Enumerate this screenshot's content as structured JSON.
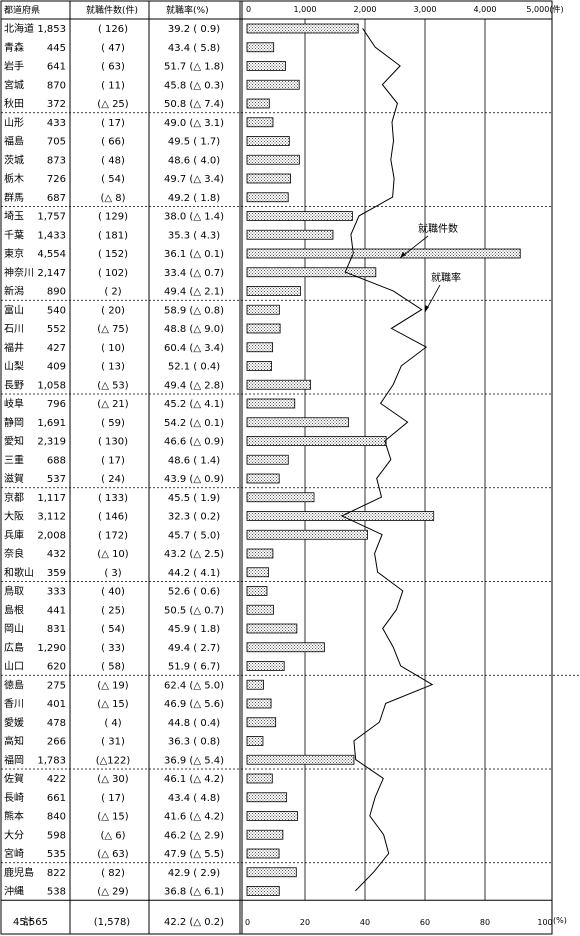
{
  "headers": {
    "prefecture": "都道府県",
    "placements": "就職件数(件)",
    "rate": "就職率(%)"
  },
  "axis": {
    "top_ticks": [
      "0",
      "1,000",
      "2,000",
      "3,000",
      "4,000",
      "5,000(件)"
    ],
    "bottom_ticks": [
      "0",
      "20",
      "40",
      "60",
      "80",
      "100"
    ],
    "bottom_unit": "(%)"
  },
  "annotations": {
    "placements_label": "就職件数",
    "rate_label": "就職率"
  },
  "totals": {
    "label": "計",
    "placements": "45,565",
    "change": "(1,578)",
    "rate": "42.2 (△ 0.2)"
  },
  "rows": [
    {
      "pref": "北海道",
      "count": "1,853",
      "change": "(  126)",
      "rate": "39.2 (   0.9)"
    },
    {
      "pref": "青森",
      "count": "445",
      "change": "(   47)",
      "rate": "43.4 (   5.8)"
    },
    {
      "pref": "岩手",
      "count": "641",
      "change": "(   63)",
      "rate": "51.7 (△ 1.8)"
    },
    {
      "pref": "宮城",
      "count": "870",
      "change": "(   11)",
      "rate": "45.8 (△ 0.3)"
    },
    {
      "pref": "秋田",
      "count": "372",
      "change": "(△ 25)",
      "rate": "50.8 (△ 7.4)"
    },
    {
      "pref": "山形",
      "count": "433",
      "change": "(   17)",
      "rate": "49.0 (△ 3.1)"
    },
    {
      "pref": "福島",
      "count": "705",
      "change": "(   66)",
      "rate": "49.5 (   1.7)"
    },
    {
      "pref": "茨城",
      "count": "873",
      "change": "(   48)",
      "rate": "48.6 (   4.0)"
    },
    {
      "pref": "栃木",
      "count": "726",
      "change": "(   54)",
      "rate": "49.7 (△ 3.4)"
    },
    {
      "pref": "群馬",
      "count": "687",
      "change": "(△  8)",
      "rate": "49.2 (   1.8)"
    },
    {
      "pref": "埼玉",
      "count": "1,757",
      "change": "(  129)",
      "rate": "38.0 (△ 1.4)"
    },
    {
      "pref": "千葉",
      "count": "1,433",
      "change": "(  181)",
      "rate": "35.3 (   4.3)"
    },
    {
      "pref": "東京",
      "count": "4,554",
      "change": "(  152)",
      "rate": "36.1 (△ 0.1)"
    },
    {
      "pref": "神奈川",
      "count": "2,147",
      "change": "(  102)",
      "rate": "33.4 (△ 0.7)"
    },
    {
      "pref": "新潟",
      "count": "890",
      "change": "(    2)",
      "rate": "49.4 (△ 2.1)"
    },
    {
      "pref": "富山",
      "count": "540",
      "change": "(   20)",
      "rate": "58.9 (△ 0.8)"
    },
    {
      "pref": "石川",
      "count": "552",
      "change": "(△ 75)",
      "rate": "48.8 (△ 9.0)"
    },
    {
      "pref": "福井",
      "count": "427",
      "change": "(   10)",
      "rate": "60.4 (△ 3.4)"
    },
    {
      "pref": "山梨",
      "count": "409",
      "change": "(   13)",
      "rate": "52.1 (   0.4)"
    },
    {
      "pref": "長野",
      "count": "1,058",
      "change": "(△ 53)",
      "rate": "49.4 (△ 2.8)"
    },
    {
      "pref": "岐阜",
      "count": "796",
      "change": "(△ 21)",
      "rate": "45.2 (△ 4.1)"
    },
    {
      "pref": "静岡",
      "count": "1,691",
      "change": "(   59)",
      "rate": "54.2 (△ 0.1)"
    },
    {
      "pref": "愛知",
      "count": "2,319",
      "change": "(  130)",
      "rate": "46.6 (△ 0.9)"
    },
    {
      "pref": "三重",
      "count": "688",
      "change": "(   17)",
      "rate": "48.6 (   1.4)"
    },
    {
      "pref": "滋賀",
      "count": "537",
      "change": "(   24)",
      "rate": "43.9 (△ 0.9)"
    },
    {
      "pref": "京都",
      "count": "1,117",
      "change": "(  133)",
      "rate": "45.5 (   1.9)"
    },
    {
      "pref": "大阪",
      "count": "3,112",
      "change": "(  146)",
      "rate": "32.3 (   0.2)"
    },
    {
      "pref": "兵庫",
      "count": "2,008",
      "change": "(  172)",
      "rate": "45.7 (   5.0)"
    },
    {
      "pref": "奈良",
      "count": "432",
      "change": "(△ 10)",
      "rate": "43.2 (△ 2.5)"
    },
    {
      "pref": "和歌山",
      "count": "359",
      "change": "(    3)",
      "rate": "44.2 (   4.1)"
    },
    {
      "pref": "鳥取",
      "count": "333",
      "change": "(   40)",
      "rate": "52.6 (   0.6)"
    },
    {
      "pref": "島根",
      "count": "441",
      "change": "(   25)",
      "rate": "50.5 (△ 0.7)"
    },
    {
      "pref": "岡山",
      "count": "831",
      "change": "(   54)",
      "rate": "45.9 (   1.8)"
    },
    {
      "pref": "広島",
      "count": "1,290",
      "change": "(   33)",
      "rate": "49.4 (   2.7)"
    },
    {
      "pref": "山口",
      "count": "620",
      "change": "(   58)",
      "rate": "51.9 (   6.7)"
    },
    {
      "pref": "徳島",
      "count": "275",
      "change": "(△ 19)",
      "rate": "62.4 (△ 5.0)"
    },
    {
      "pref": "香川",
      "count": "401",
      "change": "(△ 15)",
      "rate": "46.9 (△ 5.6)"
    },
    {
      "pref": "愛媛",
      "count": "478",
      "change": "(    4)",
      "rate": "44.8 (   0.4)"
    },
    {
      "pref": "高知",
      "count": "266",
      "change": "(   31)",
      "rate": "36.3 (   0.8)"
    },
    {
      "pref": "福岡",
      "count": "1,783",
      "change": "(△122)",
      "rate": "36.9 (△ 5.4)"
    },
    {
      "pref": "佐賀",
      "count": "422",
      "change": "(△ 30)",
      "rate": "46.1 (△ 4.2)"
    },
    {
      "pref": "長崎",
      "count": "661",
      "change": "(   17)",
      "rate": "43.4 (   4.8)"
    },
    {
      "pref": "熊本",
      "count": "840",
      "change": "(△ 15)",
      "rate": "41.6 (△ 4.2)"
    },
    {
      "pref": "大分",
      "count": "598",
      "change": "(△  6)",
      "rate": "46.2 (△ 2.9)"
    },
    {
      "pref": "宮崎",
      "count": "535",
      "change": "(△ 63)",
      "rate": "47.9 (△ 5.5)"
    },
    {
      "pref": "鹿児島",
      "count": "822",
      "change": "(   82)",
      "rate": "42.9 (   2.9)"
    },
    {
      "pref": "沖縄",
      "count": "538",
      "change": "(△ 29)",
      "rate": "36.8 (△ 6.1)"
    }
  ],
  "chart_data": {
    "type": "bar",
    "categories": [
      "北海道",
      "青森",
      "岩手",
      "宮城",
      "秋田",
      "山形",
      "福島",
      "茨城",
      "栃木",
      "群馬",
      "埼玉",
      "千葉",
      "東京",
      "神奈川",
      "新潟",
      "富山",
      "石川",
      "福井",
      "山梨",
      "長野",
      "岐阜",
      "静岡",
      "愛知",
      "三重",
      "滋賀",
      "京都",
      "大阪",
      "兵庫",
      "奈良",
      "和歌山",
      "鳥取",
      "島根",
      "岡山",
      "広島",
      "山口",
      "徳島",
      "香川",
      "愛媛",
      "高知",
      "福岡",
      "佐賀",
      "長崎",
      "熊本",
      "大分",
      "宮崎",
      "鹿児島",
      "沖縄"
    ],
    "series": [
      {
        "name": "就職件数",
        "type": "bar",
        "axis": "top",
        "unit": "件",
        "values": [
          1853,
          445,
          641,
          870,
          372,
          433,
          705,
          873,
          726,
          687,
          1757,
          1433,
          4554,
          2147,
          890,
          540,
          552,
          427,
          409,
          1058,
          796,
          1691,
          2319,
          688,
          537,
          1117,
          3112,
          2008,
          432,
          359,
          333,
          441,
          831,
          1290,
          620,
          275,
          401,
          478,
          266,
          1783,
          422,
          661,
          840,
          598,
          535,
          822,
          538
        ]
      },
      {
        "name": "就職率",
        "type": "line",
        "axis": "bottom",
        "unit": "%",
        "values": [
          39.2,
          43.4,
          51.7,
          45.8,
          50.8,
          49.0,
          49.5,
          48.6,
          49.7,
          49.2,
          38.0,
          35.3,
          36.1,
          33.4,
          49.4,
          58.9,
          48.8,
          60.4,
          52.1,
          49.4,
          45.2,
          54.2,
          46.6,
          48.6,
          43.9,
          45.5,
          32.3,
          45.7,
          43.2,
          44.2,
          52.6,
          50.5,
          45.9,
          49.4,
          51.9,
          62.4,
          46.9,
          44.8,
          36.3,
          36.9,
          46.1,
          43.4,
          41.6,
          46.2,
          47.9,
          42.9,
          36.8
        ]
      }
    ],
    "top_axis": {
      "range": [
        0,
        5000
      ],
      "ticks": [
        0,
        1000,
        2000,
        3000,
        4000,
        5000
      ],
      "unit": "件"
    },
    "bottom_axis": {
      "range": [
        0,
        100
      ],
      "ticks": [
        0,
        20,
        40,
        60,
        80,
        100
      ],
      "unit": "%"
    },
    "grid": "vertical",
    "group_separators": "dotted"
  }
}
